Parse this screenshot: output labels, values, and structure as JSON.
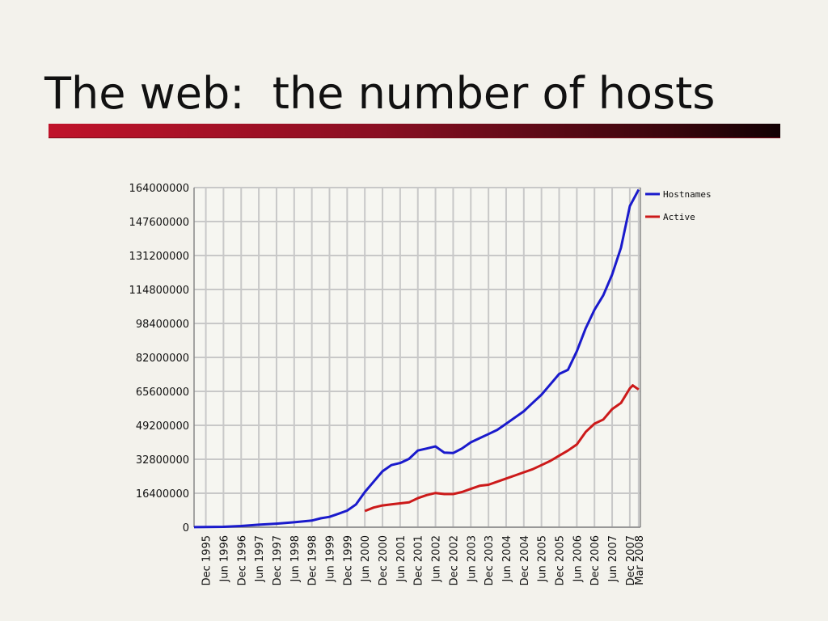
{
  "slide": {
    "title": "The web:  the number of hosts"
  },
  "colors": {
    "accent_rule": "#a3122a",
    "hostnames": "#1a1acc",
    "active": "#cc1a1a",
    "grid": "#c8c8c8"
  },
  "chart_data": {
    "type": "line",
    "title": "",
    "xlabel": "",
    "ylabel": "",
    "ylim": [
      0,
      164000000
    ],
    "yticks": [
      0,
      16400000,
      32800000,
      49200000,
      65600000,
      82000000,
      98400000,
      114800000,
      131200000,
      147600000,
      164000000
    ],
    "ytick_labels": [
      "0",
      "16400000",
      "32800000",
      "49200000",
      "65600000",
      "82000000",
      "98400000",
      "114800000",
      "131200000",
      "147600000",
      "164000000"
    ],
    "xtick_labels": [
      "Dec 1995",
      "Jun 1996",
      "Dec 1996",
      "Jun 1997",
      "Dec 1997",
      "Jun 1998",
      "Dec 1998",
      "Jun 1999",
      "Dec 1999",
      "Jun 2000",
      "Dec 2000",
      "Jun 2001",
      "Dec 2001",
      "Jun 2002",
      "Dec 2002",
      "Jun 2003",
      "Dec 2003",
      "Jun 2004",
      "Dec 2004",
      "Jun 2005",
      "Dec 2005",
      "Jun 2006",
      "Dec 2006",
      "Jun 2007",
      "Dec 2007",
      "Mar 2008"
    ],
    "grid": true,
    "legend_position": "right",
    "series": [
      {
        "name": "Hostnames",
        "color": "#1a1acc",
        "points": [
          [
            "1995-08",
            20000
          ],
          [
            "1995-12",
            100000
          ],
          [
            "1996-06",
            200000
          ],
          [
            "1996-12",
            600000
          ],
          [
            "1997-06",
            1200000
          ],
          [
            "1997-12",
            1700000
          ],
          [
            "1998-06",
            2400000
          ],
          [
            "1998-12",
            3200000
          ],
          [
            "1999-03",
            4300000
          ],
          [
            "1999-06",
            5000000
          ],
          [
            "1999-09",
            6500000
          ],
          [
            "1999-12",
            8000000
          ],
          [
            "2000-03",
            11000000
          ],
          [
            "2000-06",
            17000000
          ],
          [
            "2000-09",
            22000000
          ],
          [
            "2000-12",
            27000000
          ],
          [
            "2001-03",
            30000000
          ],
          [
            "2001-06",
            31000000
          ],
          [
            "2001-09",
            33000000
          ],
          [
            "2001-12",
            37000000
          ],
          [
            "2002-03",
            38000000
          ],
          [
            "2002-06",
            39000000
          ],
          [
            "2002-09",
            36000000
          ],
          [
            "2002-12",
            35800000
          ],
          [
            "2003-03",
            38000000
          ],
          [
            "2003-06",
            41000000
          ],
          [
            "2003-09",
            43000000
          ],
          [
            "2003-12",
            45000000
          ],
          [
            "2004-03",
            47000000
          ],
          [
            "2004-06",
            50000000
          ],
          [
            "2004-09",
            53000000
          ],
          [
            "2004-12",
            56000000
          ],
          [
            "2005-03",
            60000000
          ],
          [
            "2005-06",
            64000000
          ],
          [
            "2005-09",
            69000000
          ],
          [
            "2005-12",
            74000000
          ],
          [
            "2006-03",
            76000000
          ],
          [
            "2006-06",
            85000000
          ],
          [
            "2006-09",
            96000000
          ],
          [
            "2006-12",
            105000000
          ],
          [
            "2007-03",
            112000000
          ],
          [
            "2007-06",
            122000000
          ],
          [
            "2007-09",
            135000000
          ],
          [
            "2007-12",
            155000000
          ],
          [
            "2008-03",
            163000000
          ]
        ]
      },
      {
        "name": "Active",
        "color": "#cc1a1a",
        "points": [
          [
            "2000-06",
            7800000
          ],
          [
            "2000-09",
            9500000
          ],
          [
            "2000-12",
            10500000
          ],
          [
            "2001-03",
            11000000
          ],
          [
            "2001-06",
            11500000
          ],
          [
            "2001-09",
            12000000
          ],
          [
            "2001-12",
            14000000
          ],
          [
            "2002-03",
            15500000
          ],
          [
            "2002-06",
            16500000
          ],
          [
            "2002-09",
            16000000
          ],
          [
            "2002-12",
            16000000
          ],
          [
            "2003-03",
            17000000
          ],
          [
            "2003-06",
            18500000
          ],
          [
            "2003-09",
            20000000
          ],
          [
            "2003-12",
            20500000
          ],
          [
            "2004-03",
            22000000
          ],
          [
            "2004-06",
            23500000
          ],
          [
            "2004-09",
            25000000
          ],
          [
            "2004-12",
            26500000
          ],
          [
            "2005-03",
            28000000
          ],
          [
            "2005-06",
            30000000
          ],
          [
            "2005-09",
            32000000
          ],
          [
            "2005-12",
            34500000
          ],
          [
            "2006-03",
            37000000
          ],
          [
            "2006-06",
            40000000
          ],
          [
            "2006-09",
            46000000
          ],
          [
            "2006-12",
            50000000
          ],
          [
            "2007-03",
            52000000
          ],
          [
            "2007-06",
            57000000
          ],
          [
            "2007-09",
            60000000
          ],
          [
            "2007-12",
            67000000
          ],
          [
            "2008-01",
            68500000
          ],
          [
            "2008-03",
            66500000
          ]
        ]
      }
    ]
  }
}
